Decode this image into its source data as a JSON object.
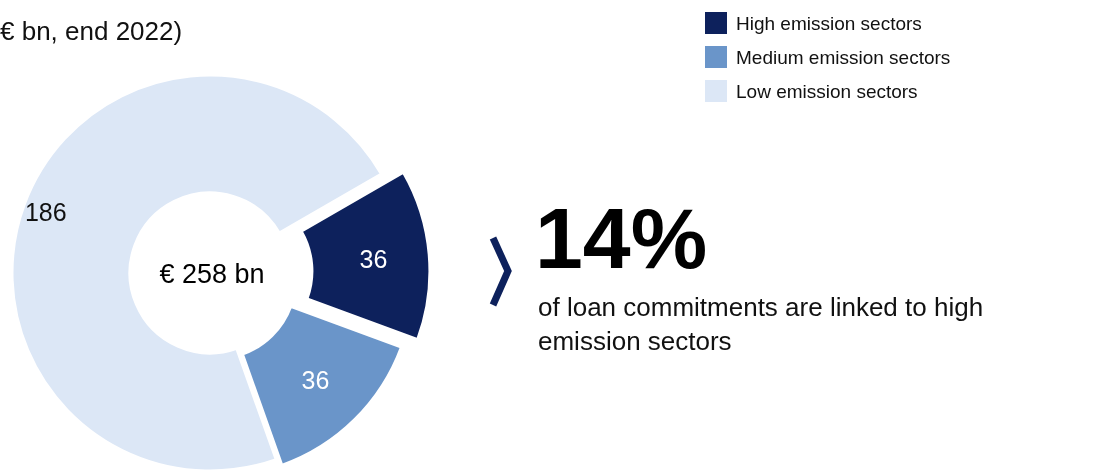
{
  "chart_data": {
    "type": "donut",
    "title": "€ bn, end 2022)",
    "categories": [
      "High emission sectors",
      "Medium emission sectors",
      "Low emission sectors"
    ],
    "values": [
      36,
      36,
      186
    ],
    "colors": [
      "#0d215c",
      "#6a95c9",
      "#dce7f6"
    ],
    "data_labels": true,
    "legend": "top right",
    "annotations": [
      "€ 258 bn",
      "14%",
      "of loan commitments are linked to high emission sectors"
    ]
  }
}
